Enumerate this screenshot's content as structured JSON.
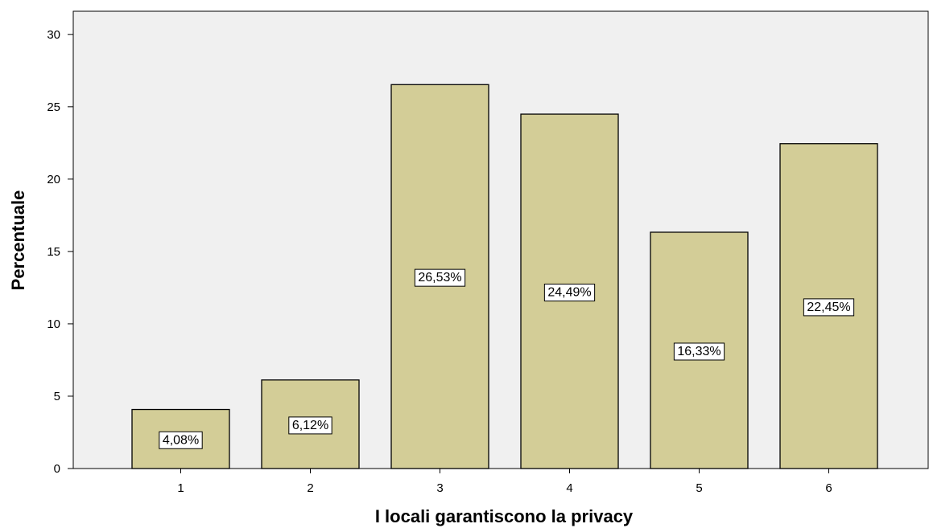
{
  "chart_data": {
    "type": "bar",
    "categories": [
      "1",
      "2",
      "3",
      "4",
      "5",
      "6"
    ],
    "values": [
      4.08,
      6.12,
      26.53,
      24.49,
      16.33,
      22.45
    ],
    "data_labels": [
      "4,08%",
      "6,12%",
      "26,53%",
      "24,49%",
      "16,33%",
      "22,45%"
    ],
    "y_ticks": [
      "0",
      "5",
      "10",
      "15",
      "20",
      "25",
      "30"
    ],
    "y_tick_values": [
      0,
      5,
      10,
      15,
      20,
      25,
      30
    ],
    "xlabel": "I locali garantiscono la privacy",
    "ylabel": "Percentuale",
    "ylim": [
      0,
      31.6
    ],
    "grid": false,
    "colors": {
      "bar_fill": "#d3cd97",
      "bar_stroke": "#000000",
      "plot_background": "#f0f0f0",
      "label_box": "#ffffff"
    }
  }
}
